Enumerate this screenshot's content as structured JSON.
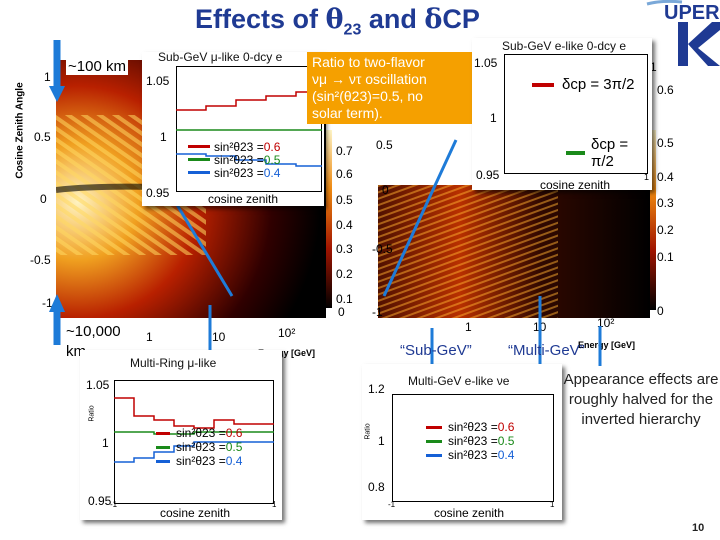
{
  "title": {
    "prefix": "Effects of ",
    "theta": "θ",
    "theta_sub": "23",
    "middle": " and ",
    "delta": "δ",
    "cp": "CP"
  },
  "logo": {
    "text": "UPER",
    "letter": "K"
  },
  "page_number": "10",
  "main_plot": {
    "y_axis_label": "Cosine Zenith Angle",
    "y_ticks": [
      "1",
      "0.5",
      "0",
      "-0.5",
      "-1"
    ],
    "x_ticks": [
      "1",
      "10",
      "10²"
    ],
    "x_label": "Energy [GeV]",
    "color_ticks": [
      "0.7",
      "0.6",
      "0.5",
      "0.4",
      "0.3",
      "0.2",
      "0.1",
      "0"
    ],
    "right_y_ticks": [
      "0.5",
      "0",
      "-0.5",
      "-1"
    ],
    "right_x_ticks": [
      "1",
      "10",
      "10²"
    ],
    "right_x_label": "Energy [GeV]",
    "right_color_ticks": [
      "0.6",
      "0.5",
      "0.4",
      "0.3",
      "0.2",
      "0.1",
      "0"
    ],
    "right_color_top_tick": "1"
  },
  "labels": {
    "dist_100km": "~100 km",
    "dist_10000km_1": "~10,000",
    "dist_10000km_2": "km",
    "subgev_quote": "“Sub-GeV”",
    "multigev_quote": "“Multi-GeV”",
    "appearance_note": "Appearance effects are roughly halved for the inverted hierarchy"
  },
  "callout": {
    "line1": "Ratio to two-flavor",
    "line2": "νμ → ντ oscillation",
    "line3": "(sin²(θ23)=0.5, no",
    "line4": "solar term)."
  },
  "panel_sub_mu": {
    "title": "Sub-GeV μ-like 0-dcy e",
    "y_ticks": [
      "1.05",
      "1",
      "0.95"
    ],
    "x_label": "cosine zenith",
    "legend": [
      "sin²θ23 = ",
      "0.6",
      "sin²θ23 = ",
      "0.5",
      "sin²θ23 = ",
      "0.4"
    ]
  },
  "panel_sub_e": {
    "title": "Sub-GeV e-like 0-dcy e",
    "y_ticks": [
      "1.05",
      "1",
      "0.95"
    ],
    "x_label": "cosine zenith",
    "x_ticks": [
      "-1",
      "1"
    ],
    "legend": [
      "δcp = 3π/2",
      "δcp = π/2"
    ]
  },
  "panel_multiring": {
    "title": "Multi-Ring μ-like",
    "y_ticks": [
      "1.05",
      "1",
      "0.95"
    ],
    "y_axis": "Ratio",
    "x_ticks": [
      "-1",
      "1"
    ],
    "x_label": "cosine zenith",
    "legend": [
      "sin²θ23 = ",
      "0.6",
      "sin²θ23 = ",
      "0.5",
      "sin²θ23 = ",
      "0.4"
    ]
  },
  "panel_multigev_e": {
    "title": "Multi-GeV e-like νe",
    "y_ticks": [
      "1.2",
      "1",
      "0.8"
    ],
    "y_axis": "Ratio",
    "x_ticks": [
      "-1",
      "1"
    ],
    "x_label": "cosine zenith",
    "legend": [
      "sin²θ23 = ",
      "0.6",
      "sin²θ23 = ",
      "0.5",
      "sin²θ23 = ",
      "0.4"
    ]
  },
  "colors": {
    "red": "#c00000",
    "green": "#1a8a1a",
    "blue": "#1560d6",
    "title": "#1f3a93",
    "callout": "#f5a000",
    "arrow": "#1e7bd8"
  }
}
